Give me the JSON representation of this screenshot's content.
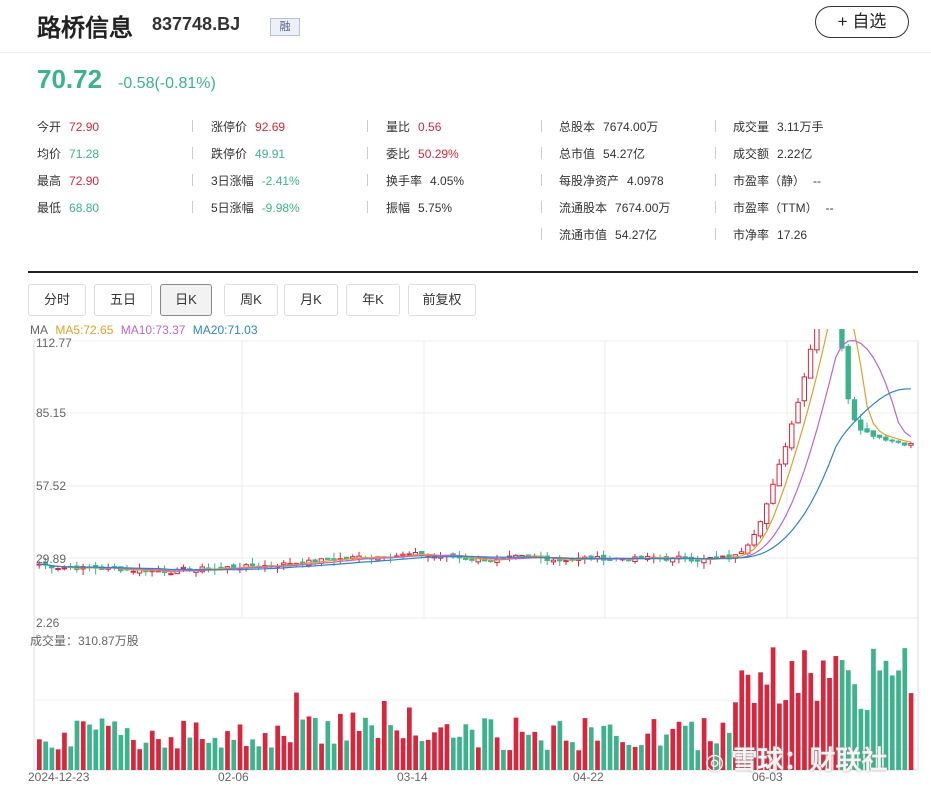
{
  "header": {
    "name": "路桥信息",
    "code": "837748.BJ",
    "badge": "融",
    "add_button": "+ 自选"
  },
  "quote": {
    "price": "70.72",
    "change": "-0.58(-0.81%)"
  },
  "stats": [
    {
      "label": "今开",
      "value": "72.90",
      "color": "red"
    },
    {
      "label": "涨停价",
      "value": "92.69",
      "color": "red"
    },
    {
      "label": "量比",
      "value": "0.56",
      "color": "red"
    },
    {
      "label": "总股本",
      "value": "7674.00万",
      "color": "dark"
    },
    {
      "label": "成交量",
      "value": "3.11万手",
      "color": "dark"
    },
    {
      "label": "均价",
      "value": "71.28",
      "color": "green"
    },
    {
      "label": "跌停价",
      "value": "49.91",
      "color": "green"
    },
    {
      "label": "委比",
      "value": "50.29%",
      "color": "red"
    },
    {
      "label": "总市值",
      "value": "54.27亿",
      "color": "dark"
    },
    {
      "label": "成交额",
      "value": "2.22亿",
      "color": "dark"
    },
    {
      "label": "最高",
      "value": "72.90",
      "color": "red"
    },
    {
      "label": "3日涨幅",
      "value": "-2.41%",
      "color": "green"
    },
    {
      "label": "换手率",
      "value": "4.05%",
      "color": "dark"
    },
    {
      "label": "每股净资产",
      "value": "4.0978",
      "color": "dark"
    },
    {
      "label": "市盈率（静）",
      "value": "--",
      "color": "dark"
    },
    {
      "label": "最低",
      "value": "68.80",
      "color": "green"
    },
    {
      "label": "5日涨幅",
      "value": "-9.98%",
      "color": "green"
    },
    {
      "label": "振幅",
      "value": "5.75%",
      "color": "dark"
    },
    {
      "label": "流通股本",
      "value": "7674.00万",
      "color": "dark"
    },
    {
      "label": "市盈率（TTM）",
      "value": "--",
      "color": "dark"
    },
    {
      "label": "流通市值",
      "value": "54.27亿",
      "color": "dark"
    },
    {
      "label": "市净率",
      "value": "17.26",
      "color": "dark"
    }
  ],
  "tabs": [
    "分时",
    "五日",
    "日K",
    "周K",
    "月K",
    "年K",
    "前复权"
  ],
  "active_tab": "日K",
  "ma_legend": {
    "label": "MA",
    "ma5": "MA5:72.65",
    "ma10": "MA10:73.37",
    "ma20": "MA20:71.03"
  },
  "colors": {
    "up": "#d7263d",
    "down": "#3cb38c",
    "ma5": "#e3a02a",
    "ma10": "#b865d6",
    "ma20": "#2e86c1"
  },
  "chart_data": {
    "type": "candlestick",
    "y_ticks": [
      "112.77",
      "85.15",
      "57.52",
      "29.89",
      "2.26"
    ],
    "x_ticks": [
      "2024-12-23",
      "02-06",
      "03-14",
      "04-22",
      "06-03"
    ],
    "volume_label": "成交量：310.87万股",
    "ma_series": [
      "MA5",
      "MA10",
      "MA20"
    ],
    "ylim": [
      2.26,
      112.77
    ]
  },
  "watermark": "雪球：财联社"
}
